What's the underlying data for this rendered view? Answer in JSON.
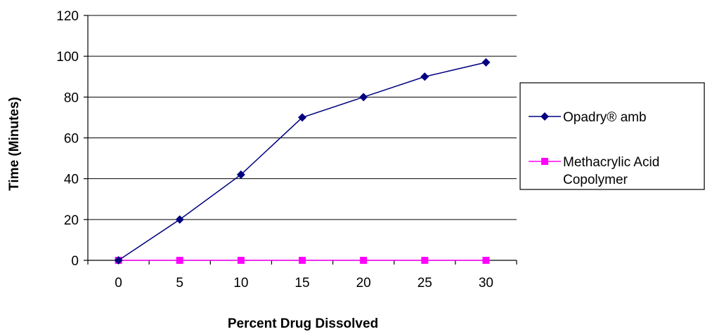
{
  "chart_data": {
    "type": "line",
    "categories": [
      "0",
      "5",
      "10",
      "15",
      "20",
      "25",
      "30"
    ],
    "xlabel": "Percent Drug Dissolved",
    "ylabel": "Time (Minutes)",
    "ylim": [
      0,
      120
    ],
    "yticks": [
      0,
      20,
      40,
      60,
      80,
      100,
      120
    ],
    "grid": true,
    "legend_position": "right",
    "series": [
      {
        "name": "Opadry® amb",
        "values": [
          0,
          20,
          42,
          70,
          80,
          90,
          97
        ],
        "color": "#000080",
        "marker": "diamond"
      },
      {
        "name_lines": [
          "Methacrylic Acid",
          "Copolymer"
        ],
        "values": [
          0,
          0,
          0,
          0,
          0,
          0,
          0
        ],
        "color": "#ff00ff",
        "marker": "square"
      }
    ]
  }
}
